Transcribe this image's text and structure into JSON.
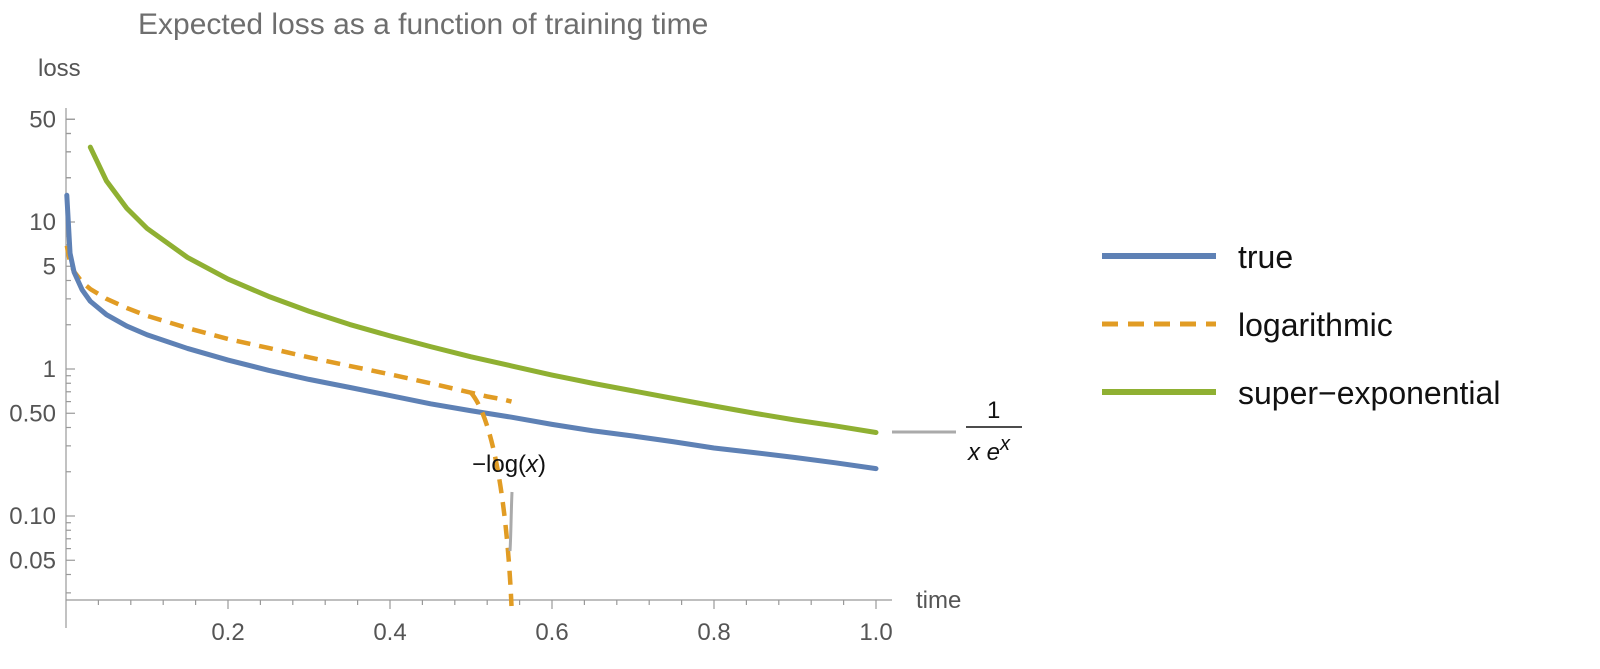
{
  "chart_data": {
    "type": "line",
    "title": "Expected loss as a function of training time",
    "xlabel": "time",
    "ylabel": "loss",
    "xlim": [
      0,
      1.0
    ],
    "ylim": [
      0.025,
      60
    ],
    "yscale": "log",
    "x_ticks": [
      0.2,
      0.4,
      0.6,
      0.8,
      1.0
    ],
    "x_tick_labels": [
      "0.2",
      "0.4",
      "0.6",
      "0.8",
      "1.0"
    ],
    "y_ticks": [
      50,
      10,
      5,
      1,
      0.5,
      0.1,
      0.05
    ],
    "y_tick_labels": [
      "50",
      "10",
      "5",
      "1",
      "0.50",
      "0.10",
      "0.05"
    ],
    "grid": false,
    "legend_position": "right",
    "series": [
      {
        "name": "true",
        "color": "#5e81b5",
        "style": "solid",
        "x": [
          0.001,
          0.005,
          0.01,
          0.02,
          0.03,
          0.05,
          0.075,
          0.1,
          0.15,
          0.2,
          0.25,
          0.3,
          0.35,
          0.4,
          0.45,
          0.5,
          0.55,
          0.6,
          0.65,
          0.7,
          0.75,
          0.8,
          0.85,
          0.9,
          0.95,
          1.0
        ],
        "y": [
          15.2,
          6.13,
          4.55,
          3.45,
          2.89,
          2.34,
          1.96,
          1.71,
          1.38,
          1.15,
          0.98,
          0.85,
          0.75,
          0.66,
          0.58,
          0.52,
          0.47,
          0.42,
          0.38,
          0.35,
          0.32,
          0.29,
          0.27,
          0.25,
          0.23,
          0.21
        ]
      },
      {
        "name": "logarithmic",
        "color": "#e19c24",
        "style": "dashed",
        "x": [
          0.001,
          0.005,
          0.01,
          0.02,
          0.03,
          0.05,
          0.075,
          0.1,
          0.15,
          0.2,
          0.25,
          0.3,
          0.35,
          0.4,
          0.45,
          0.5,
          0.52,
          0.54,
          0.545,
          0.55
        ],
        "y": [
          6.9,
          5.3,
          4.6,
          3.9,
          3.5,
          3.0,
          2.6,
          2.3,
          1.9,
          1.6,
          1.39,
          1.2,
          1.05,
          0.92,
          0.8,
          0.69,
          0.65,
          0.62,
          0.61,
          0.6
        ]
      },
      {
        "name": "super−exponential",
        "color": "#8fb032",
        "style": "solid",
        "x": [
          0.03,
          0.05,
          0.075,
          0.1,
          0.15,
          0.2,
          0.25,
          0.3,
          0.35,
          0.4,
          0.45,
          0.5,
          0.55,
          0.6,
          0.65,
          0.7,
          0.75,
          0.8,
          0.85,
          0.9,
          0.95,
          1.0
        ],
        "y": [
          32.3,
          19.0,
          12.4,
          9.05,
          5.74,
          4.09,
          3.12,
          2.47,
          2.01,
          1.68,
          1.42,
          1.21,
          1.05,
          0.91,
          0.8,
          0.71,
          0.63,
          0.56,
          0.5,
          0.45,
          0.41,
          0.37
        ]
      }
    ],
    "annotations": [
      {
        "id": "log",
        "text_main": "log(",
        "text_prefix": "−",
        "text_var": "x",
        "text_suffix": ")",
        "points_to": "logarithmic"
      },
      {
        "id": "superexp",
        "numerator": "1",
        "denominator_var": "x",
        "denominator_base": "e",
        "denominator_exp": "x",
        "points_to": "super−exponential"
      }
    ]
  }
}
